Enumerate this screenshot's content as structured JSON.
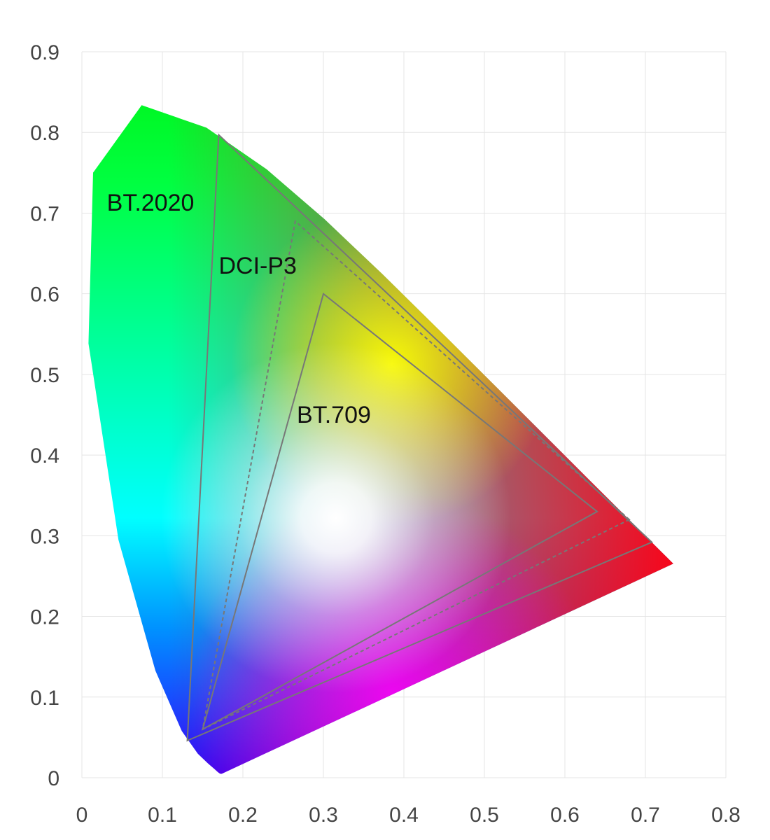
{
  "chart_data": {
    "type": "scatter",
    "title": "",
    "xlabel": "",
    "ylabel": "",
    "xlim": [
      0,
      0.8
    ],
    "ylim": [
      0,
      0.9
    ],
    "xticks": [
      "0",
      "0.1",
      "0.2",
      "0.3",
      "0.4",
      "0.5",
      "0.6",
      "0.7",
      "0.8"
    ],
    "yticks": [
      "0",
      "0.1",
      "0.2",
      "0.3",
      "0.4",
      "0.5",
      "0.6",
      "0.7",
      "0.8",
      "0.9"
    ],
    "grid": true,
    "spectral_locus": {
      "x": [
        0.1741,
        0.174,
        0.1738,
        0.1733,
        0.1726,
        0.1714,
        0.1689,
        0.1644,
        0.1566,
        0.144,
        0.1241,
        0.0913,
        0.0454,
        0.0082,
        0.0139,
        0.0743,
        0.1547,
        0.2296,
        0.3016,
        0.3731,
        0.4441,
        0.5125,
        0.5752,
        0.627,
        0.6658,
        0.6915,
        0.7079,
        0.719,
        0.726,
        0.73,
        0.7347
      ],
      "y": [
        0.005,
        0.005,
        0.005,
        0.0048,
        0.0048,
        0.0051,
        0.0069,
        0.0109,
        0.0177,
        0.0297,
        0.0578,
        0.1327,
        0.295,
        0.5384,
        0.7502,
        0.8338,
        0.8059,
        0.7543,
        0.6923,
        0.6245,
        0.5547,
        0.4866,
        0.4242,
        0.3725,
        0.334,
        0.3083,
        0.292,
        0.2809,
        0.274,
        0.27,
        0.2653
      ]
    },
    "series": [
      {
        "name": "BT.2020",
        "x": [
          0.708,
          0.17,
          0.131
        ],
        "y": [
          0.292,
          0.797,
          0.046
        ],
        "style": "solid",
        "color": "#777777"
      },
      {
        "name": "DCI-P3",
        "x": [
          0.68,
          0.265,
          0.15
        ],
        "y": [
          0.32,
          0.69,
          0.06
        ],
        "style": "dashed",
        "color": "#777777"
      },
      {
        "name": "BT.709",
        "x": [
          0.64,
          0.3,
          0.15
        ],
        "y": [
          0.33,
          0.6,
          0.06
        ],
        "style": "solid",
        "color": "#777777"
      }
    ],
    "annotations": [
      {
        "text": "BT.2020",
        "x": 0.031,
        "y": 0.703
      },
      {
        "text": "DCI-P3",
        "x": 0.17,
        "y": 0.625
      },
      {
        "text": "BT.709",
        "x": 0.267,
        "y": 0.44
      }
    ]
  }
}
